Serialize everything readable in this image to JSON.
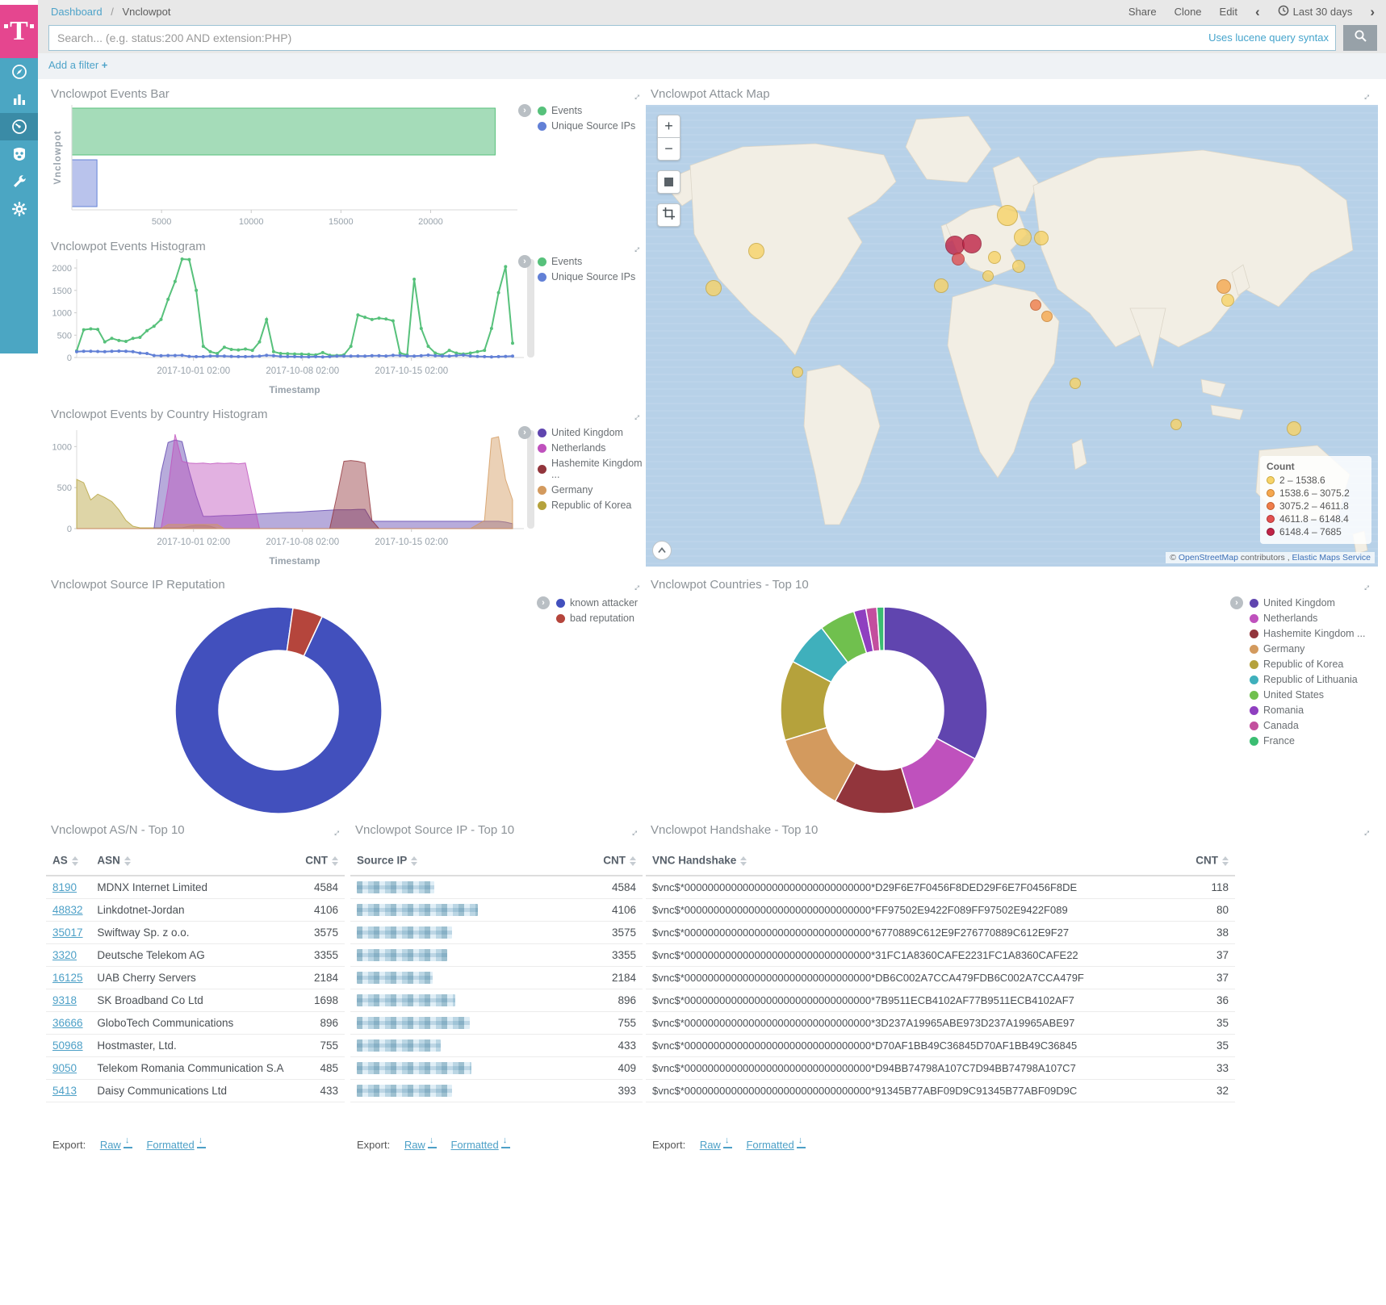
{
  "topbar": {
    "breadcrumb": {
      "root": "Dashboard",
      "separator": "/",
      "current": "Vnclowpot"
    },
    "actions": [
      "Share",
      "Clone",
      "Edit"
    ],
    "time_picker": {
      "label": "Last 30 days",
      "prev": "‹",
      "next": "›"
    }
  },
  "search": {
    "placeholder": "Search... (e.g. status:200 AND extension:PHP)",
    "syntax_hint": "Uses lucene query syntax"
  },
  "filter_bar": {
    "add_label": "Add a filter",
    "plus": "+"
  },
  "sidebar": {
    "items": [
      "discover",
      "visualize",
      "dashboard",
      "timelion",
      "dev-tools",
      "management"
    ]
  },
  "panels": {
    "events_bar": {
      "title": "Vnclowpot Events Bar"
    },
    "events_histogram": {
      "title": "Vnclowpot Events Histogram"
    },
    "country_histogram": {
      "title": "Vnclowpot Events by Country Histogram"
    },
    "attack_map": {
      "title": "Vnclowpot Attack Map"
    },
    "reputation": {
      "title": "Vnclowpot Source IP Reputation"
    },
    "countries": {
      "title": "Vnclowpot Countries - Top 10"
    },
    "asn_table": {
      "title": "Vnclowpot AS/N - Top 10"
    },
    "srcip_table": {
      "title": "Vnclowpot Source IP - Top 10"
    },
    "handshake_table": {
      "title": "Vnclowpot Handshake - Top 10"
    }
  },
  "chart_data": [
    {
      "id": "events-bar",
      "type": "bar",
      "orientation": "horizontal",
      "ylabel": "Vnclowpot",
      "xlim": [
        0,
        24300
      ],
      "xticks": [
        5000,
        10000,
        15000,
        20000
      ],
      "series": [
        {
          "name": "Events",
          "value": 23600,
          "color": "#57c17b",
          "fill": "#a5dcb9"
        },
        {
          "name": "Unique Source IPs",
          "value": 1400,
          "color": "#6280d6",
          "fill": "#b9c3ec"
        }
      ]
    },
    {
      "id": "events-histogram",
      "type": "line",
      "xlabel": "Timestamp",
      "ylim": [
        0,
        2200
      ],
      "yticks": [
        0,
        500,
        1000,
        1500,
        2000
      ],
      "xticks": [
        {
          "label": "2017-10-01 02:00",
          "pos": 0.268
        },
        {
          "label": "2017-10-08 02:00",
          "pos": 0.518
        },
        {
          "label": "2017-10-15 02:00",
          "pos": 0.768
        }
      ],
      "series": [
        {
          "name": "Events",
          "color": "#57c17b",
          "values": [
            150,
            620,
            640,
            630,
            350,
            430,
            380,
            360,
            430,
            450,
            600,
            700,
            850,
            1300,
            1700,
            2200,
            2190,
            1500,
            250,
            130,
            90,
            230,
            180,
            170,
            190,
            160,
            350,
            850,
            130,
            90,
            85,
            80,
            75,
            70,
            60,
            110,
            50,
            45,
            60,
            250,
            950,
            900,
            850,
            880,
            860,
            820,
            100,
            60,
            1750,
            650,
            250,
            100,
            60,
            160,
            100,
            80,
            100,
            130,
            160,
            650,
            1450,
            2030,
            320
          ]
        },
        {
          "name": "Unique Source IPs",
          "color": "#6280d6",
          "values": [
            130,
            140,
            140,
            135,
            130,
            140,
            145,
            140,
            130,
            100,
            90,
            45,
            40,
            45,
            45,
            50,
            25,
            20,
            20,
            35,
            35,
            30,
            25,
            20,
            20,
            25,
            30,
            50,
            40,
            25,
            20,
            20,
            15,
            15,
            20,
            15,
            20,
            30,
            30,
            30,
            35,
            30,
            40,
            40,
            35,
            50,
            45,
            35,
            30,
            40,
            55,
            40,
            35,
            30,
            45,
            55,
            35,
            25,
            20,
            15,
            20,
            25,
            30
          ]
        }
      ]
    },
    {
      "id": "country-histogram",
      "type": "area",
      "xlabel": "Timestamp",
      "ylim": [
        0,
        1200
      ],
      "yticks": [
        0,
        500,
        1000
      ],
      "xticks": [
        {
          "label": "2017-10-01 02:00",
          "pos": 0.268
        },
        {
          "label": "2017-10-08 02:00",
          "pos": 0.518
        },
        {
          "label": "2017-10-15 02:00",
          "pos": 0.768
        }
      ],
      "series": [
        {
          "name": "Republic of Korea",
          "color": "#b5a23c",
          "values": [
            600,
            560,
            350,
            420,
            380,
            330,
            230,
            100,
            30,
            10,
            10,
            10,
            10,
            10,
            10,
            10,
            30,
            40,
            40,
            30,
            0,
            0,
            0,
            0,
            0,
            0,
            0,
            0,
            0,
            0,
            0,
            0,
            0,
            0,
            0,
            0,
            0,
            0,
            0,
            0,
            0,
            0,
            0,
            0,
            0,
            0,
            0,
            0,
            0,
            0,
            0,
            0,
            0,
            0,
            0,
            0,
            0,
            0,
            0,
            0,
            0,
            0,
            0
          ]
        },
        {
          "name": "United Kingdom",
          "color": "#6045af",
          "values": [
            0,
            0,
            0,
            0,
            0,
            0,
            0,
            0,
            0,
            0,
            0,
            0,
            680,
            1050,
            1080,
            1060,
            700,
            400,
            150,
            150,
            155,
            160,
            160,
            165,
            170,
            175,
            180,
            185,
            190,
            195,
            200,
            200,
            205,
            210,
            215,
            220,
            225,
            230,
            230,
            230,
            235,
            235,
            90,
            90,
            90,
            90,
            90,
            90,
            90,
            90,
            90,
            90,
            90,
            90,
            90,
            90,
            90,
            90,
            90,
            90,
            90,
            80,
            60
          ]
        },
        {
          "name": "Netherlands",
          "color": "#bf51bd",
          "values": [
            0,
            0,
            0,
            0,
            0,
            0,
            0,
            0,
            0,
            0,
            0,
            0,
            0,
            500,
            1150,
            820,
            800,
            795,
            800,
            790,
            800,
            795,
            800,
            790,
            800,
            400,
            0,
            0,
            0,
            0,
            0,
            0,
            0,
            0,
            0,
            0,
            0,
            0,
            0,
            0,
            0,
            0,
            0,
            0,
            0,
            0,
            0,
            0,
            0,
            0,
            0,
            0,
            0,
            0,
            0,
            0,
            0,
            0,
            0,
            0,
            0,
            0,
            0
          ]
        },
        {
          "name": "Hashemite Kingdom ...",
          "color": "#92353c",
          "values": [
            0,
            0,
            0,
            0,
            0,
            0,
            0,
            0,
            0,
            0,
            0,
            0,
            0,
            0,
            0,
            0,
            0,
            0,
            0,
            0,
            0,
            0,
            0,
            0,
            0,
            0,
            0,
            0,
            0,
            0,
            0,
            0,
            0,
            0,
            0,
            0,
            0,
            400,
            820,
            830,
            820,
            800,
            100,
            0,
            0,
            0,
            0,
            0,
            0,
            0,
            0,
            0,
            0,
            0,
            0,
            0,
            0,
            0,
            0,
            0,
            0,
            0,
            0
          ]
        },
        {
          "name": "Germany",
          "color": "#d39a5e",
          "values": [
            0,
            0,
            0,
            0,
            0,
            0,
            0,
            0,
            0,
            0,
            0,
            0,
            0,
            50,
            50,
            50,
            50,
            50,
            50,
            50,
            50,
            0,
            0,
            0,
            0,
            0,
            0,
            0,
            0,
            0,
            0,
            0,
            0,
            0,
            0,
            0,
            0,
            0,
            0,
            0,
            0,
            0,
            0,
            0,
            0,
            0,
            0,
            0,
            0,
            0,
            0,
            0,
            0,
            0,
            0,
            0,
            0,
            50,
            100,
            1100,
            1120,
            600,
            350
          ]
        }
      ]
    },
    {
      "id": "reputation-donut",
      "type": "pie",
      "donut": true,
      "start_angle": 25,
      "slices": [
        {
          "label": "known attacker",
          "percent": 95.3,
          "color": "#4250bd"
        },
        {
          "label": "bad reputation",
          "percent": 4.7,
          "color": "#b5453c"
        }
      ]
    },
    {
      "id": "countries-donut",
      "type": "pie",
      "donut": true,
      "start_angle": 0,
      "slices": [
        {
          "label": "United Kingdom",
          "percent": 32.8,
          "color": "#6045af"
        },
        {
          "label": "Netherlands",
          "percent": 12.5,
          "color": "#bf51bd"
        },
        {
          "label": "Hashemite Kingdom ...",
          "percent": 12.5,
          "color": "#92353c"
        },
        {
          "label": "Germany",
          "percent": 12.5,
          "color": "#d39a5e"
        },
        {
          "label": "Republic of Korea",
          "percent": 12.5,
          "color": "#b5a23c"
        },
        {
          "label": "Republic of Lithuania",
          "percent": 6.9,
          "color": "#3fb0bc"
        },
        {
          "label": "United States",
          "percent": 5.6,
          "color": "#70c04e"
        },
        {
          "label": "Romania",
          "percent": 1.9,
          "color": "#8f3fc0"
        },
        {
          "label": "Canada",
          "percent": 1.7,
          "color": "#c34f9e"
        },
        {
          "label": "France",
          "percent": 1.1,
          "color": "#3bbd72"
        }
      ]
    }
  ],
  "map": {
    "legend_title": "Count",
    "legend": [
      {
        "label": "2 – 1538.6",
        "color": "#f7d368",
        "border": "#c9a73c"
      },
      {
        "label": "1538.6 – 3075.2",
        "color": "#f5a74e",
        "border": "#c97f2e"
      },
      {
        "label": "3075.2 – 4611.8",
        "color": "#ef7d4a",
        "border": "#c05a28"
      },
      {
        "label": "4611.8 – 6148.4",
        "color": "#e25151",
        "border": "#b03030"
      },
      {
        "label": "6148.4 – 7685",
        "color": "#c02346",
        "border": "#8e1834"
      }
    ],
    "attribution": {
      "prefix": "©",
      "link1": "OpenStreetMap",
      "middle": "contributors ,",
      "link2": "Elastic Maps Service"
    },
    "markers": [
      {
        "x": 137,
        "y": 181,
        "r": 10,
        "c": 0
      },
      {
        "x": 84,
        "y": 227,
        "r": 10,
        "c": 0
      },
      {
        "x": 188,
        "y": 331,
        "r": 7,
        "c": 0
      },
      {
        "x": 383,
        "y": 174,
        "r": 12,
        "c": 4
      },
      {
        "x": 404,
        "y": 172,
        "r": 12,
        "c": 4
      },
      {
        "x": 387,
        "y": 191,
        "r": 8,
        "c": 3
      },
      {
        "x": 448,
        "y": 137,
        "r": 13,
        "c": 0
      },
      {
        "x": 467,
        "y": 164,
        "r": 11,
        "c": 0
      },
      {
        "x": 490,
        "y": 165,
        "r": 9,
        "c": 0
      },
      {
        "x": 432,
        "y": 189,
        "r": 8,
        "c": 0
      },
      {
        "x": 424,
        "y": 212,
        "r": 7,
        "c": 0
      },
      {
        "x": 462,
        "y": 200,
        "r": 8,
        "c": 0
      },
      {
        "x": 366,
        "y": 224,
        "r": 9,
        "c": 0
      },
      {
        "x": 483,
        "y": 248,
        "r": 7,
        "c": 2
      },
      {
        "x": 497,
        "y": 262,
        "r": 7,
        "c": 1
      },
      {
        "x": 716,
        "y": 225,
        "r": 9,
        "c": 1
      },
      {
        "x": 721,
        "y": 242,
        "r": 8,
        "c": 0
      },
      {
        "x": 532,
        "y": 345,
        "r": 7,
        "c": 0
      },
      {
        "x": 657,
        "y": 396,
        "r": 7,
        "c": 0
      },
      {
        "x": 803,
        "y": 401,
        "r": 9,
        "c": 0
      }
    ]
  },
  "tables": {
    "asn": {
      "headers": [
        "AS",
        "ASN",
        "CNT"
      ],
      "rows": [
        {
          "as": "8190",
          "asn": "MDNX Internet Limited",
          "cnt": "4584"
        },
        {
          "as": "48832",
          "asn": "Linkdotnet-Jordan",
          "cnt": "4106"
        },
        {
          "as": "35017",
          "asn": "Swiftway Sp. z o.o.",
          "cnt": "3575"
        },
        {
          "as": "3320",
          "asn": "Deutsche Telekom AG",
          "cnt": "3355"
        },
        {
          "as": "16125",
          "asn": "UAB Cherry Servers",
          "cnt": "2184"
        },
        {
          "as": "9318",
          "asn": "SK Broadband Co Ltd",
          "cnt": "1698"
        },
        {
          "as": "36666",
          "asn": "GloboTech Communications",
          "cnt": "896"
        },
        {
          "as": "50968",
          "asn": "Hostmaster, Ltd.",
          "cnt": "755"
        },
        {
          "as": "9050",
          "asn": "Telekom Romania Communication S.A",
          "cnt": "485"
        },
        {
          "as": "5413",
          "asn": "Daisy Communications Ltd",
          "cnt": "433"
        }
      ]
    },
    "srcip": {
      "headers": [
        "Source IP",
        "CNT"
      ],
      "ip_censored": true,
      "rows": [
        {
          "w": 96,
          "cnt": "4584"
        },
        {
          "w": 150,
          "cnt": "4106"
        },
        {
          "w": 118,
          "cnt": "3575"
        },
        {
          "w": 112,
          "cnt": "3355"
        },
        {
          "w": 94,
          "cnt": "2184"
        },
        {
          "w": 122,
          "cnt": "896"
        },
        {
          "w": 140,
          "cnt": "755"
        },
        {
          "w": 104,
          "cnt": "433"
        },
        {
          "w": 142,
          "cnt": "409"
        },
        {
          "w": 118,
          "cnt": "393"
        }
      ]
    },
    "handshake": {
      "headers": [
        "VNC Handshake",
        "CNT"
      ],
      "rows": [
        {
          "hash": "$vnc$*00000000000000000000000000000000*D29F6E7F0456F8DED29F6E7F0456F8DE",
          "cnt": "118"
        },
        {
          "hash": "$vnc$*00000000000000000000000000000000*FF97502E9422F089FF97502E9422F089",
          "cnt": "80"
        },
        {
          "hash": "$vnc$*00000000000000000000000000000000*6770889C612E9F276770889C612E9F27",
          "cnt": "38"
        },
        {
          "hash": "$vnc$*00000000000000000000000000000000*31FC1A8360CAFE2231FC1A8360CAFE22",
          "cnt": "37"
        },
        {
          "hash": "$vnc$*00000000000000000000000000000000*DB6C002A7CCA479FDB6C002A7CCA479F",
          "cnt": "37"
        },
        {
          "hash": "$vnc$*00000000000000000000000000000000*7B9511ECB4102AF77B9511ECB4102AF7",
          "cnt": "36"
        },
        {
          "hash": "$vnc$*00000000000000000000000000000000*3D237A19965ABE973D237A19965ABE97",
          "cnt": "35"
        },
        {
          "hash": "$vnc$*00000000000000000000000000000000*D70AF1BB49C36845D70AF1BB49C36845",
          "cnt": "35"
        },
        {
          "hash": "$vnc$*00000000000000000000000000000000*D94BB74798A107C7D94BB74798A107C7",
          "cnt": "33"
        },
        {
          "hash": "$vnc$*00000000000000000000000000000000*91345B77ABF09D9C91345B77ABF09D9C",
          "cnt": "32"
        }
      ]
    }
  },
  "export_bar": {
    "label": "Export:",
    "raw_label": "Raw",
    "formatted_label": "Formatted"
  }
}
